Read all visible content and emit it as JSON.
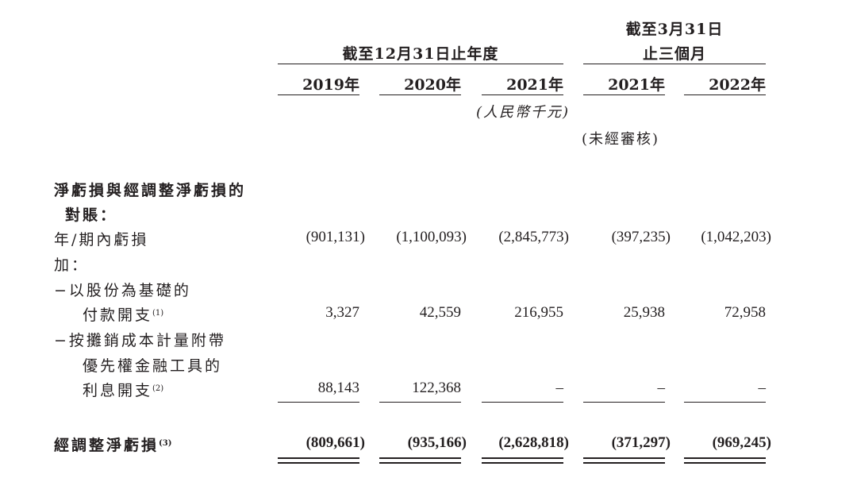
{
  "header": {
    "group1": "截至12月31日止年度",
    "group2_line1": "截至3月31日",
    "group2_line2": "止三個月",
    "years": [
      "2019年",
      "2020年",
      "2021年",
      "2021年",
      "2022年"
    ],
    "unit": "(人民幣千元)",
    "unaudited": "(未經審核)"
  },
  "rows": {
    "section_title_1": "淨虧損與經調整淨虧損的",
    "section_title_2": "對賬：",
    "net_loss_label": "年/期內虧損",
    "net_loss": [
      "(901,131)",
      "(1,100,093)",
      "(2,845,773)",
      "(397,235)",
      "(1,042,203)"
    ],
    "add_label": "加：",
    "sbc_label_1": "−以股份為基礎的",
    "sbc_label_2": "付款開支",
    "sbc_note": "(1)",
    "sbc": [
      "3,327",
      "42,559",
      "216,955",
      "25,938",
      "72,958"
    ],
    "int_label_1": "−按攤銷成本計量附帶",
    "int_label_2": "優先權金融工具的",
    "int_label_3": "利息開支",
    "int_note": "(2)",
    "interest": [
      "88,143",
      "122,368",
      "–",
      "–",
      "–"
    ],
    "adj_label": "經調整淨虧損",
    "adj_note": "(3)",
    "adjusted": [
      "(809,661)",
      "(935,166)",
      "(2,628,818)",
      "(371,297)",
      "(969,245)"
    ]
  }
}
